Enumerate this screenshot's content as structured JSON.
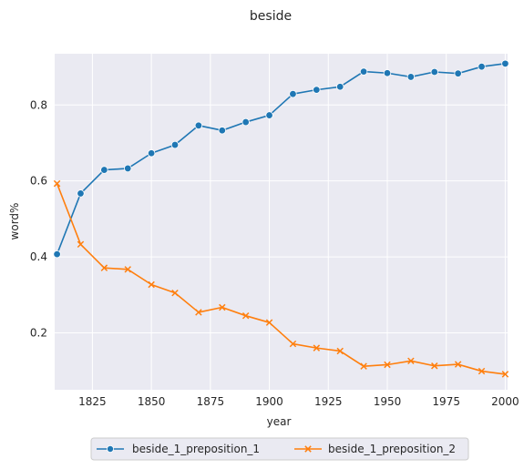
{
  "chart_data": {
    "type": "line",
    "title": "beside",
    "xlabel": "year",
    "ylabel": "word%",
    "xlim": [
      1809,
      2001
    ],
    "ylim": [
      0.05,
      0.935
    ],
    "xticks": [
      1825,
      1850,
      1875,
      1900,
      1925,
      1950,
      1975,
      2000
    ],
    "yticks": [
      0.2,
      0.4,
      0.6,
      0.8
    ],
    "grid": true,
    "legend_position": "bottom-center",
    "x": [
      1810,
      1820,
      1830,
      1840,
      1850,
      1860,
      1870,
      1880,
      1890,
      1900,
      1910,
      1920,
      1930,
      1940,
      1950,
      1960,
      1970,
      1980,
      1990,
      2000
    ],
    "series": [
      {
        "name": "beside_1_preposition_1",
        "color": "#1f77b4",
        "marker": "circle",
        "values": [
          0.407,
          0.567,
          0.629,
          0.633,
          0.673,
          0.695,
          0.746,
          0.733,
          0.755,
          0.773,
          0.829,
          0.84,
          0.848,
          0.888,
          0.884,
          0.874,
          0.887,
          0.883,
          0.901,
          0.909
        ]
      },
      {
        "name": "beside_1_preposition_2",
        "color": "#ff7f0e",
        "marker": "x",
        "values": [
          0.593,
          0.433,
          0.371,
          0.367,
          0.327,
          0.305,
          0.254,
          0.267,
          0.245,
          0.227,
          0.171,
          0.16,
          0.152,
          0.112,
          0.116,
          0.126,
          0.113,
          0.117,
          0.099,
          0.091
        ]
      }
    ]
  }
}
